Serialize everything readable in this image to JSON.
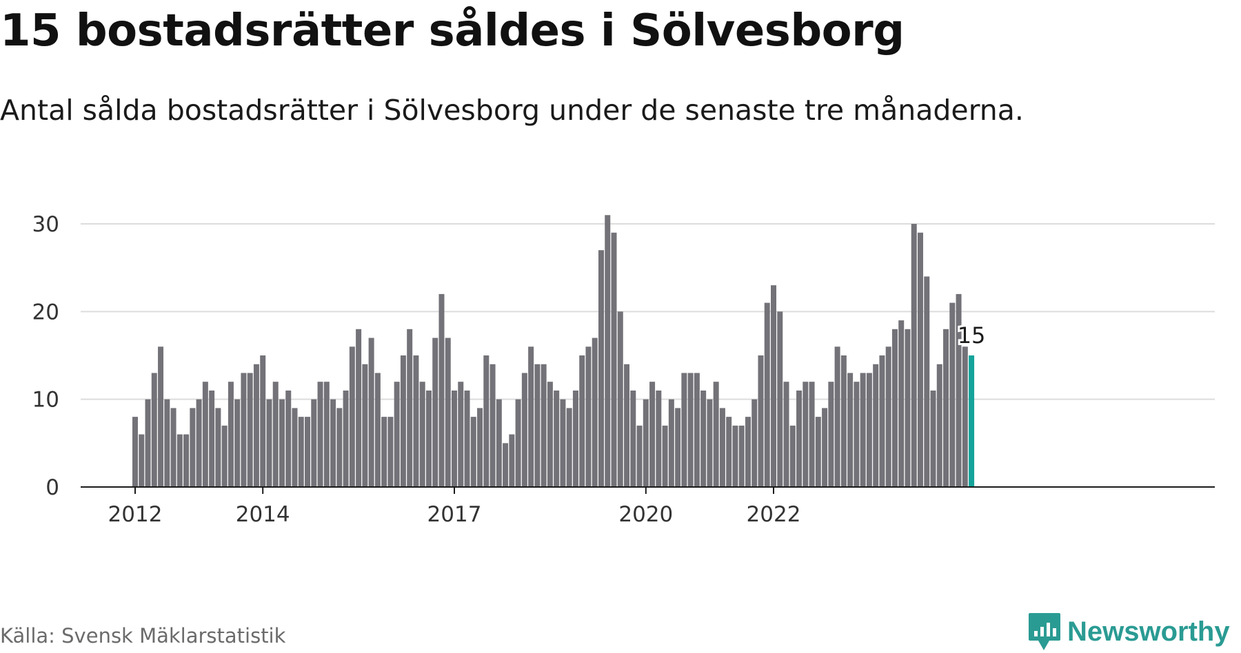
{
  "header": {
    "title": "15 bostadsrätter såldes i Sölvesborg",
    "subtitle": "Antal sålda bostadsrätter i Sölvesborg under de senaste tre månaderna."
  },
  "footer": {
    "source": "Källa: Svensk Mäklarstatistik",
    "brand": "Newsworthy",
    "brand_icon": "bar-chart-icon"
  },
  "colors": {
    "bar": "#737278",
    "highlight": "#14a39a",
    "grid": "#dcdcdc",
    "axis": "#1a1a1a",
    "brand": "#2a9b93"
  },
  "chart_data": {
    "type": "bar",
    "title": "15 bostadsrätter såldes i Sölvesborg",
    "subtitle": "Antal sålda bostadsrätter i Sölvesborg under de senaste tre månaderna.",
    "xlabel": "",
    "ylabel": "",
    "ylim": [
      0,
      30
    ],
    "yticks": [
      0,
      10,
      20,
      30
    ],
    "xticks": [
      {
        "label": "2012",
        "index": 0
      },
      {
        "label": "2014",
        "index": 20
      },
      {
        "label": "2017",
        "index": 50
      },
      {
        "label": "2020",
        "index": 80
      },
      {
        "label": "2022",
        "index": 100
      }
    ],
    "grid": true,
    "values": [
      8,
      6,
      10,
      13,
      16,
      10,
      9,
      6,
      6,
      9,
      10,
      12,
      11,
      9,
      7,
      12,
      10,
      13,
      13,
      14,
      15,
      10,
      12,
      10,
      11,
      9,
      8,
      8,
      10,
      12,
      12,
      10,
      9,
      11,
      16,
      18,
      14,
      17,
      13,
      8,
      8,
      12,
      15,
      18,
      15,
      12,
      11,
      17,
      22,
      17,
      11,
      12,
      11,
      8,
      9,
      15,
      14,
      10,
      5,
      6,
      10,
      13,
      16,
      14,
      14,
      12,
      11,
      10,
      9,
      11,
      15,
      16,
      17,
      27,
      31,
      29,
      20,
      14,
      11,
      7,
      10,
      12,
      11,
      7,
      10,
      9,
      13,
      13,
      13,
      11,
      10,
      12,
      9,
      8,
      7,
      7,
      8,
      10,
      15,
      21,
      23,
      20,
      12,
      7,
      11,
      12,
      12,
      8,
      9,
      12,
      16,
      15,
      13,
      12,
      13,
      13,
      14,
      15,
      16,
      18,
      19,
      18,
      30,
      29,
      24,
      11,
      14,
      18,
      21,
      22,
      16,
      15
    ],
    "highlight_index": 131,
    "highlight_label": "15"
  }
}
